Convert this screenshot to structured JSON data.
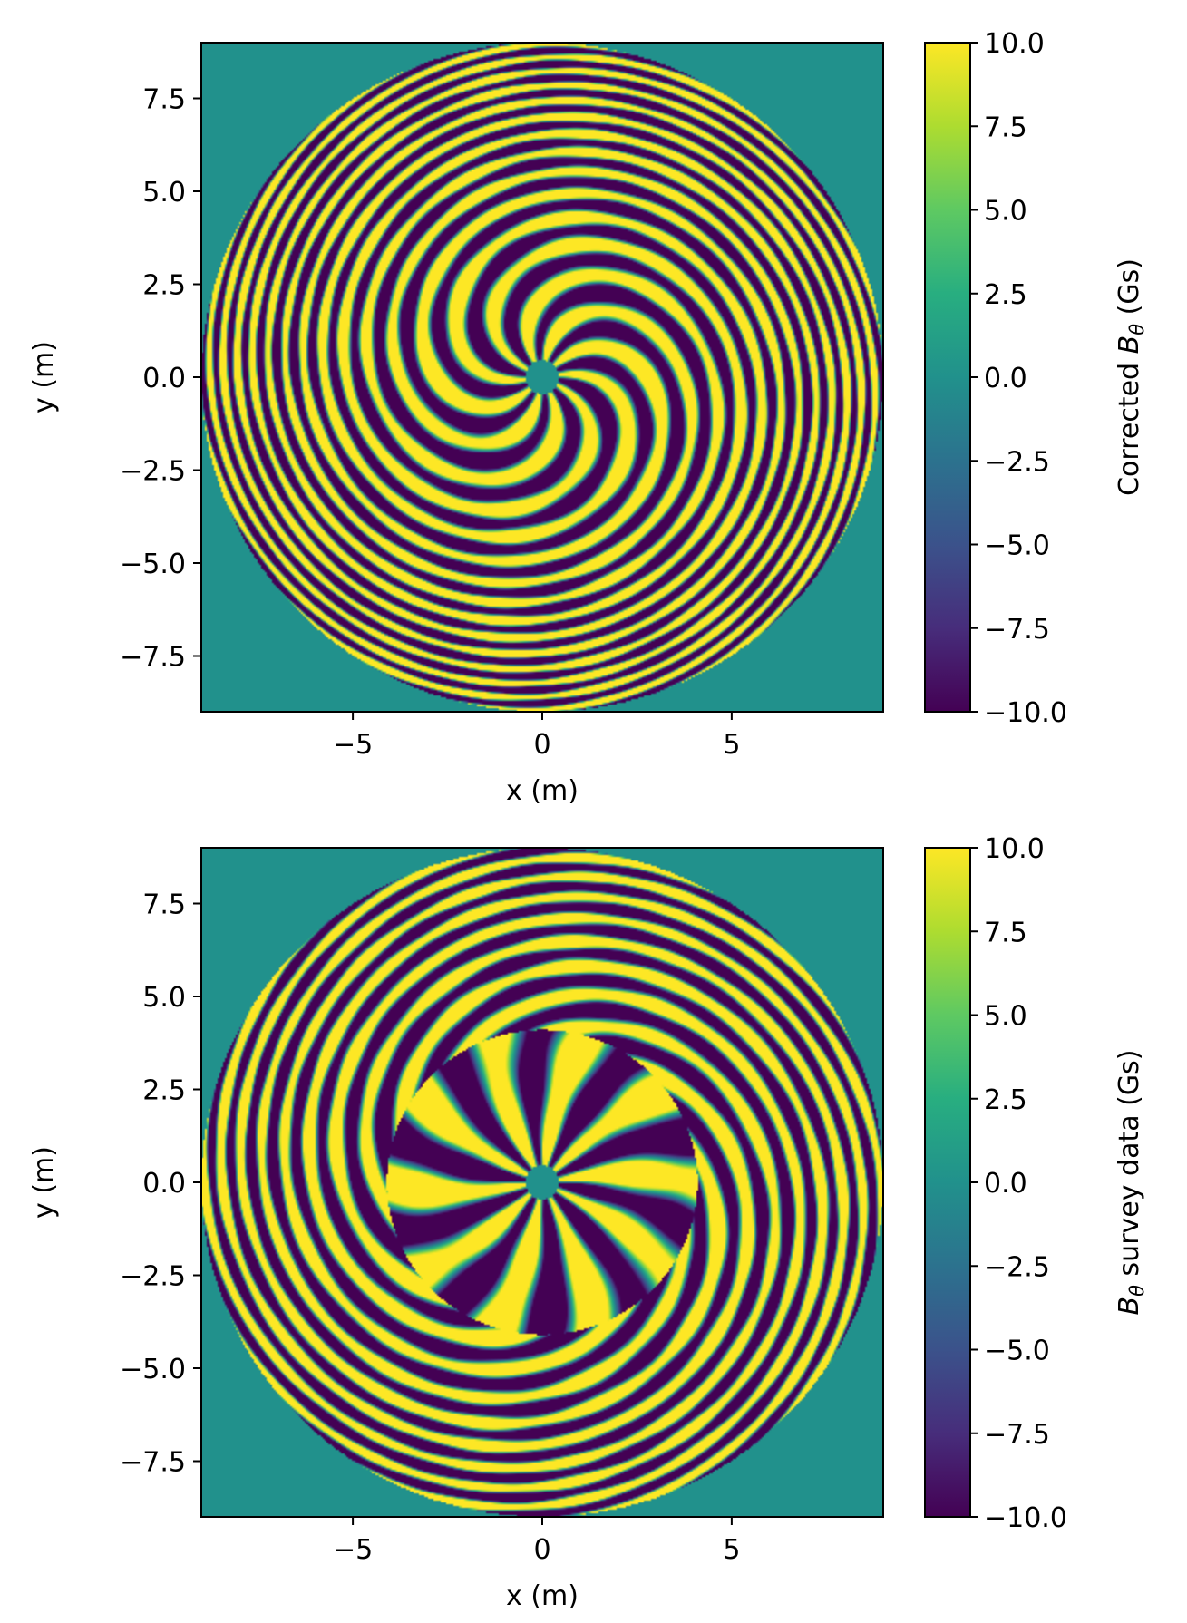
{
  "figure_title": "",
  "chart_data": [
    {
      "type": "heatmap",
      "colormap": "viridis",
      "xlabel": "x (m)",
      "ylabel": "y (m)",
      "xlim": [
        -9,
        9
      ],
      "ylim": [
        -9,
        9
      ],
      "xticks": [
        -5,
        0,
        5
      ],
      "xtick_labels": [
        "−5",
        "0",
        "5"
      ],
      "yticks": [
        -7.5,
        -5.0,
        -2.5,
        0.0,
        2.5,
        5.0,
        7.5
      ],
      "ytick_labels": [
        "−7.5",
        "−5.0",
        "−2.5",
        "0.0",
        "2.5",
        "5.0",
        "7.5"
      ],
      "colorbar": {
        "label_prefix": "Corrected ",
        "label_symbol": "B",
        "label_subscript": "θ",
        "label_suffix": " (Gs)",
        "range": [
          -10,
          10
        ],
        "ticks": [
          -10,
          -7.5,
          -5,
          -2.5,
          0,
          2.5,
          5,
          7.5,
          10
        ],
        "tick_labels": [
          "−10.0",
          "−7.5",
          "−5.0",
          "−2.5",
          "0.0",
          "2.5",
          "5.0",
          "7.5",
          "10.0"
        ]
      },
      "field": {
        "disk_radius": 9,
        "outside_value": 0,
        "spiral_arms": 10,
        "spiral_twist": 0.22,
        "saturation_value": 10,
        "inner_ring_radius": 0
      }
    },
    {
      "type": "heatmap",
      "colormap": "viridis",
      "xlabel": "x (m)",
      "ylabel": "y (m)",
      "xlim": [
        -9,
        9
      ],
      "ylim": [
        -9,
        9
      ],
      "xticks": [
        -5,
        0,
        5
      ],
      "xtick_labels": [
        "−5",
        "0",
        "5"
      ],
      "yticks": [
        -7.5,
        -5.0,
        -2.5,
        0.0,
        2.5,
        5.0,
        7.5
      ],
      "ytick_labels": [
        "−7.5",
        "−5.0",
        "−2.5",
        "0.0",
        "2.5",
        "5.0",
        "7.5"
      ],
      "colorbar": {
        "label_prefix": "",
        "label_symbol": "B",
        "label_subscript": "θ",
        "label_suffix": " survey data (Gs)",
        "range": [
          -10,
          10
        ],
        "ticks": [
          -10,
          -7.5,
          -5,
          -2.5,
          0,
          2.5,
          5,
          7.5,
          10
        ],
        "tick_labels": [
          "−10.0",
          "−7.5",
          "−5.0",
          "−2.5",
          "0.0",
          "2.5",
          "5.0",
          "7.5",
          "10.0"
        ]
      },
      "field": {
        "disk_radius": 9,
        "outside_value": 0,
        "spiral_arms": 10,
        "spiral_twist": 0.16,
        "saturation_value": 10,
        "inner_ring_radius": 4.1
      }
    }
  ]
}
